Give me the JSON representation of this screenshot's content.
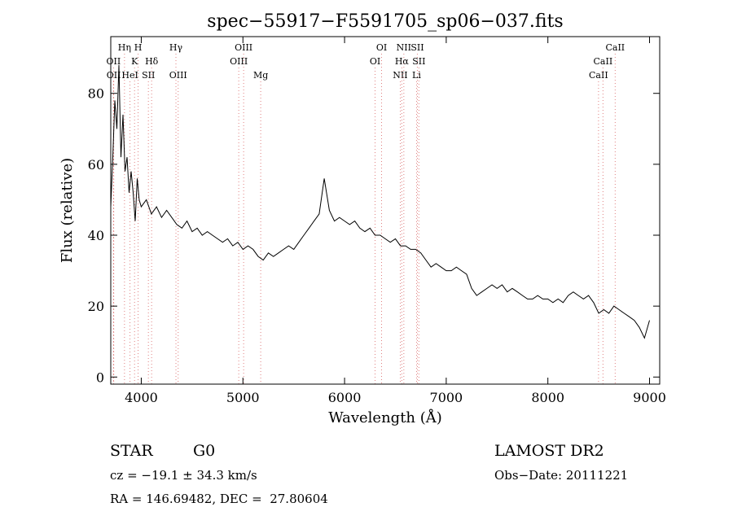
{
  "chart_data": {
    "type": "line",
    "title": "spec−55917−F5591705_sp06−037.fits",
    "xlabel": "Wavelength (Å)",
    "ylabel": "Flux (relative)",
    "xlim": [
      3700,
      9100
    ],
    "ylim": [
      -2,
      96
    ],
    "xticks": [
      4000,
      5000,
      6000,
      7000,
      8000,
      9000
    ],
    "yticks": [
      0,
      20,
      40,
      60,
      80
    ],
    "series": [
      {
        "points": [
          [
            3700,
            48
          ],
          [
            3720,
            62
          ],
          [
            3740,
            78
          ],
          [
            3760,
            70
          ],
          [
            3780,
            88
          ],
          [
            3800,
            62
          ],
          [
            3820,
            74
          ],
          [
            3840,
            58
          ],
          [
            3860,
            62
          ],
          [
            3880,
            52
          ],
          [
            3900,
            58
          ],
          [
            3920,
            52
          ],
          [
            3940,
            44
          ],
          [
            3960,
            56
          ],
          [
            3980,
            50
          ],
          [
            4000,
            48
          ],
          [
            4050,
            50
          ],
          [
            4100,
            46
          ],
          [
            4150,
            48
          ],
          [
            4200,
            45
          ],
          [
            4250,
            47
          ],
          [
            4300,
            45
          ],
          [
            4350,
            43
          ],
          [
            4400,
            42
          ],
          [
            4450,
            44
          ],
          [
            4500,
            41
          ],
          [
            4550,
            42
          ],
          [
            4600,
            40
          ],
          [
            4650,
            41
          ],
          [
            4700,
            40
          ],
          [
            4750,
            39
          ],
          [
            4800,
            38
          ],
          [
            4850,
            39
          ],
          [
            4900,
            37
          ],
          [
            4950,
            38
          ],
          [
            5000,
            36
          ],
          [
            5050,
            37
          ],
          [
            5100,
            36
          ],
          [
            5150,
            34
          ],
          [
            5200,
            33
          ],
          [
            5250,
            35
          ],
          [
            5300,
            34
          ],
          [
            5350,
            35
          ],
          [
            5400,
            36
          ],
          [
            5450,
            37
          ],
          [
            5500,
            36
          ],
          [
            5550,
            38
          ],
          [
            5600,
            40
          ],
          [
            5650,
            42
          ],
          [
            5700,
            44
          ],
          [
            5750,
            46
          ],
          [
            5800,
            56
          ],
          [
            5850,
            47
          ],
          [
            5900,
            44
          ],
          [
            5950,
            45
          ],
          [
            6000,
            44
          ],
          [
            6050,
            43
          ],
          [
            6100,
            44
          ],
          [
            6150,
            42
          ],
          [
            6200,
            41
          ],
          [
            6250,
            42
          ],
          [
            6300,
            40
          ],
          [
            6350,
            40
          ],
          [
            6400,
            39
          ],
          [
            6450,
            38
          ],
          [
            6500,
            39
          ],
          [
            6550,
            37
          ],
          [
            6600,
            37
          ],
          [
            6650,
            36
          ],
          [
            6700,
            36
          ],
          [
            6750,
            35
          ],
          [
            6800,
            33
          ],
          [
            6850,
            31
          ],
          [
            6900,
            32
          ],
          [
            6950,
            31
          ],
          [
            7000,
            30
          ],
          [
            7050,
            30
          ],
          [
            7100,
            31
          ],
          [
            7150,
            30
          ],
          [
            7200,
            29
          ],
          [
            7250,
            25
          ],
          [
            7300,
            23
          ],
          [
            7350,
            24
          ],
          [
            7400,
            25
          ],
          [
            7450,
            26
          ],
          [
            7500,
            25
          ],
          [
            7550,
            26
          ],
          [
            7600,
            24
          ],
          [
            7650,
            25
          ],
          [
            7700,
            24
          ],
          [
            7750,
            23
          ],
          [
            7800,
            22
          ],
          [
            7850,
            22
          ],
          [
            7900,
            23
          ],
          [
            7950,
            22
          ],
          [
            8000,
            22
          ],
          [
            8050,
            21
          ],
          [
            8100,
            22
          ],
          [
            8150,
            21
          ],
          [
            8200,
            23
          ],
          [
            8250,
            24
          ],
          [
            8300,
            23
          ],
          [
            8350,
            22
          ],
          [
            8400,
            23
          ],
          [
            8450,
            21
          ],
          [
            8500,
            18
          ],
          [
            8550,
            19
          ],
          [
            8600,
            18
          ],
          [
            8650,
            20
          ],
          [
            8700,
            19
          ],
          [
            8750,
            18
          ],
          [
            8800,
            17
          ],
          [
            8850,
            16
          ],
          [
            8900,
            14
          ],
          [
            8950,
            11
          ],
          [
            9000,
            16
          ]
        ]
      }
    ],
    "lines": [
      {
        "name": "OII",
        "x": 3727,
        "row": 1
      },
      {
        "name": "OII",
        "x": 3729,
        "row": 2
      },
      {
        "name": "Hη",
        "x": 3835,
        "row": 0
      },
      {
        "name": "H",
        "x": 3969,
        "row": 0
      },
      {
        "name": "K",
        "x": 3934,
        "row": 1
      },
      {
        "name": "HeI",
        "x": 3889,
        "row": 2
      },
      {
        "name": "Hδ",
        "x": 4102,
        "row": 1
      },
      {
        "name": "SII",
        "x": 4070,
        "row": 2
      },
      {
        "name": "Hγ",
        "x": 4341,
        "row": 0
      },
      {
        "name": "OIII",
        "x": 4363,
        "row": 2
      },
      {
        "name": "OIII",
        "x": 5007,
        "row": 0
      },
      {
        "name": "OIII",
        "x": 4959,
        "row": 1
      },
      {
        "name": "Mg",
        "x": 5175,
        "row": 2
      },
      {
        "name": "OI",
        "x": 6364,
        "row": 0
      },
      {
        "name": "OI",
        "x": 6300,
        "row": 1
      },
      {
        "name": "NII",
        "x": 6548,
        "row": 2
      },
      {
        "name": "NII",
        "x": 6583,
        "row": 0
      },
      {
        "name": "Hα",
        "x": 6563,
        "row": 1
      },
      {
        "name": "SII",
        "x": 6716,
        "row": 0
      },
      {
        "name": "SII",
        "x": 6731,
        "row": 1
      },
      {
        "name": "Li",
        "x": 6708,
        "row": 2
      },
      {
        "name": "CaII",
        "x": 8662,
        "row": 0
      },
      {
        "name": "CaII",
        "x": 8542,
        "row": 1
      },
      {
        "name": "CaII",
        "x": 8498,
        "row": 2
      }
    ]
  },
  "info": {
    "class_label": "STAR",
    "subclass": "G0",
    "survey": "LAMOST DR2",
    "redshift": "cz = −19.1 ± 34.3 km/s",
    "obs_date": "Obs−Date: 20111221",
    "coords": "RA = 146.69482, DEC =  27.80604"
  }
}
